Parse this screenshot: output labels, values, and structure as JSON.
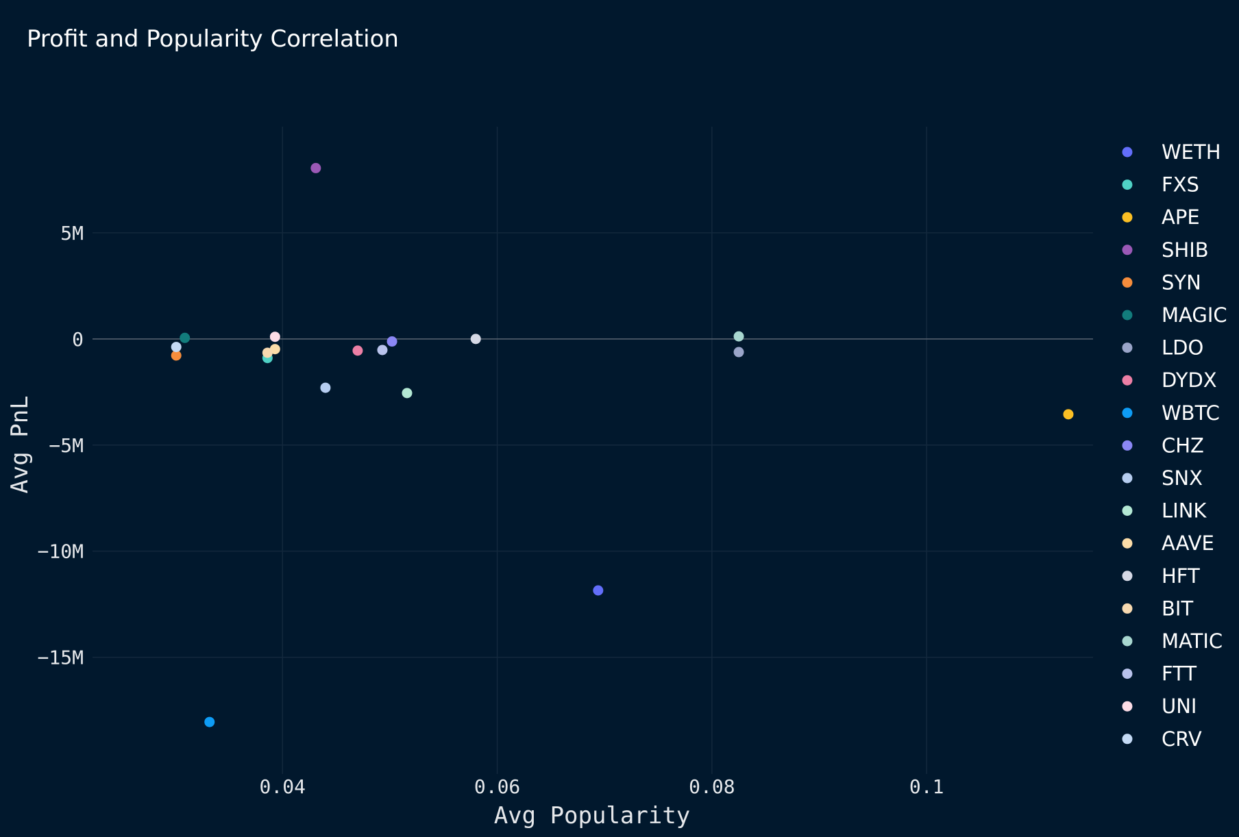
{
  "chart_data": {
    "type": "scatter",
    "title": "Profit and Popularity Correlation",
    "xlabel": "Avg Popularity",
    "ylabel": "Avg PnL",
    "xlim": [
      0.0223,
      0.1155
    ],
    "ylim": [
      -20.5,
      10.0
    ],
    "x_ticks": [
      {
        "value": 0.04,
        "label": "0.04"
      },
      {
        "value": 0.06,
        "label": "0.06"
      },
      {
        "value": 0.08,
        "label": "0.08"
      },
      {
        "value": 0.1,
        "label": "0.1"
      }
    ],
    "y_ticks": [
      {
        "value": 5,
        "label": "5M"
      },
      {
        "value": 0,
        "label": "0"
      },
      {
        "value": -5,
        "label": "−5M"
      },
      {
        "value": -10,
        "label": "−10M"
      },
      {
        "value": -15,
        "label": "−15M"
      }
    ],
    "y_unit": "M",
    "grid": true,
    "legend_position": "right",
    "series": [
      {
        "name": "WETH",
        "color": "#636efa",
        "points": [
          [
            0.0694,
            -11.85
          ]
        ]
      },
      {
        "name": "FXS",
        "color": "#4fd1c5",
        "points": [
          [
            0.0386,
            -0.9
          ]
        ]
      },
      {
        "name": "APE",
        "color": "#fbbf24",
        "points": [
          [
            0.1132,
            -3.55
          ]
        ]
      },
      {
        "name": "SHIB",
        "color": "#9b59b6",
        "points": [
          [
            0.0431,
            8.05
          ]
        ]
      },
      {
        "name": "SYN",
        "color": "#f68d3c",
        "points": [
          [
            0.0301,
            -0.78
          ]
        ]
      },
      {
        "name": "MAGIC",
        "color": "#127c7c",
        "points": [
          [
            0.0309,
            0.05
          ]
        ]
      },
      {
        "name": "LDO",
        "color": "#9aa5c9",
        "points": [
          [
            0.0825,
            -0.62
          ]
        ]
      },
      {
        "name": "DYDX",
        "color": "#ec7fa5",
        "points": [
          [
            0.047,
            -0.55
          ]
        ]
      },
      {
        "name": "WBTC",
        "color": "#0e9cf5",
        "points": [
          [
            0.0332,
            -18.05
          ]
        ]
      },
      {
        "name": "CHZ",
        "color": "#8b87f5",
        "points": [
          [
            0.0502,
            -0.12
          ]
        ]
      },
      {
        "name": "SNX",
        "color": "#b6cdf0",
        "points": [
          [
            0.044,
            -2.3
          ]
        ]
      },
      {
        "name": "LINK",
        "color": "#b3e8d4",
        "points": [
          [
            0.0516,
            -2.55
          ]
        ]
      },
      {
        "name": "AAVE",
        "color": "#fcdca8",
        "points": [
          [
            0.0393,
            -0.48
          ]
        ]
      },
      {
        "name": "HFT",
        "color": "#d6d9e6",
        "points": [
          [
            0.058,
            0.0
          ]
        ]
      },
      {
        "name": "BIT",
        "color": "#f7d9b0",
        "points": [
          [
            0.0386,
            -0.65
          ]
        ]
      },
      {
        "name": "MATIC",
        "color": "#a8d7d0",
        "points": [
          [
            0.0825,
            0.12
          ]
        ]
      },
      {
        "name": "FTT",
        "color": "#b9c3ec",
        "points": [
          [
            0.0493,
            -0.52
          ]
        ]
      },
      {
        "name": "UNI",
        "color": "#fcdce6",
        "points": [
          [
            0.0393,
            0.1
          ]
        ]
      },
      {
        "name": "CRV",
        "color": "#c4daf5",
        "points": [
          [
            0.0301,
            -0.38
          ]
        ]
      }
    ]
  }
}
